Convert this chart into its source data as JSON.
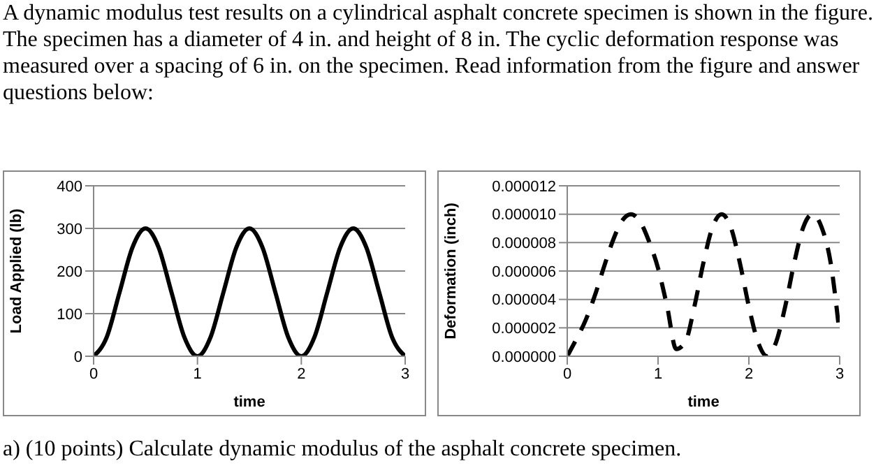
{
  "chart_data": [
    {
      "type": "line",
      "annotations": [
        "A dynamic modulus test results on a cylindrical asphalt concrete specimen is shown in the figure. The specimen has a diameter of 4 in. and height of 8 in. The cyclic deformation response was measured over a spacing of 6 in. on the specimen. Read information from the figure and answer questions below:"
      ],
      "xlabel": "time",
      "ylabel": "Load Applied (lb)",
      "xlim": [
        0,
        3
      ],
      "xticks": [
        0,
        1,
        2,
        3
      ],
      "ylim": [
        0,
        400
      ],
      "yticks": [
        0,
        100,
        200,
        300,
        400
      ],
      "grid": "y",
      "marker": "none",
      "line_style": "solid",
      "series": [
        {
          "color": "#000000",
          "x": [
            0,
            0.125,
            0.25,
            0.375,
            0.5,
            0.625,
            0.75,
            0.875,
            1,
            1.125,
            1.25,
            1.375,
            1.5,
            1.625,
            1.75,
            1.875,
            2,
            2.125,
            2.25,
            2.375,
            2.5,
            2.625,
            2.75,
            2.875,
            3
          ],
          "values": [
            0,
            44,
            150,
            256,
            300,
            256,
            150,
            44,
            0,
            44,
            150,
            256,
            300,
            256,
            150,
            44,
            0,
            44,
            150,
            256,
            300,
            256,
            150,
            44,
            0
          ]
        }
      ]
    },
    {
      "type": "line",
      "annotations": [
        "a) (10 points) Calculate dynamic modulus of the asphalt concrete specimen."
      ],
      "xlabel": "time",
      "ylabel": "Deformation (inch)",
      "xlim": [
        0,
        3
      ],
      "xticks": [
        0,
        1,
        2,
        3
      ],
      "ylim": [
        0,
        1.2e-05
      ],
      "yticks": [
        {
          "value": 0,
          "label": "0.000000"
        },
        {
          "value": 2e-06,
          "label": "0.000002"
        },
        {
          "value": 4e-06,
          "label": "0.000004"
        },
        {
          "value": 6e-06,
          "label": "0.000006"
        },
        {
          "value": 8e-06,
          "label": "0.000008"
        },
        {
          "value": 1e-05,
          "label": "0.000010"
        },
        {
          "value": 1.2e-05,
          "label": "0.000012"
        }
      ],
      "grid": "y",
      "marker": "none",
      "line_style": "dashed",
      "series": [
        {
          "color": "#000000",
          "x": [
            0,
            0.1,
            0.2,
            0.3,
            0.4,
            0.5,
            0.6,
            0.7,
            0.8,
            0.9,
            1,
            1.1,
            1.2,
            1.3,
            1.4,
            1.5,
            1.6,
            1.7,
            1.8,
            1.9,
            2,
            2.1,
            2.2,
            2.3,
            2.4,
            2.5,
            2.6,
            2.7,
            2.8,
            2.9,
            3
          ],
          "values": [
            0,
            1.2e-06,
            2.5e-06,
            4.2e-06,
            6.2e-06,
            8.1e-06,
            9.5e-06,
            1e-05,
            9.5e-06,
            8.1e-06,
            6.2e-06,
            3.5e-06,
            5e-07,
            1e-06,
            3.5e-06,
            6.6e-06,
            9.1e-06,
            1e-05,
            9.1e-06,
            6.6e-06,
            3.5e-06,
            1e-06,
            0,
            1e-06,
            3.5e-06,
            6.6e-06,
            9.1e-06,
            1e-05,
            9.1e-06,
            6.6e-06,
            1.5e-06
          ]
        }
      ]
    }
  ]
}
